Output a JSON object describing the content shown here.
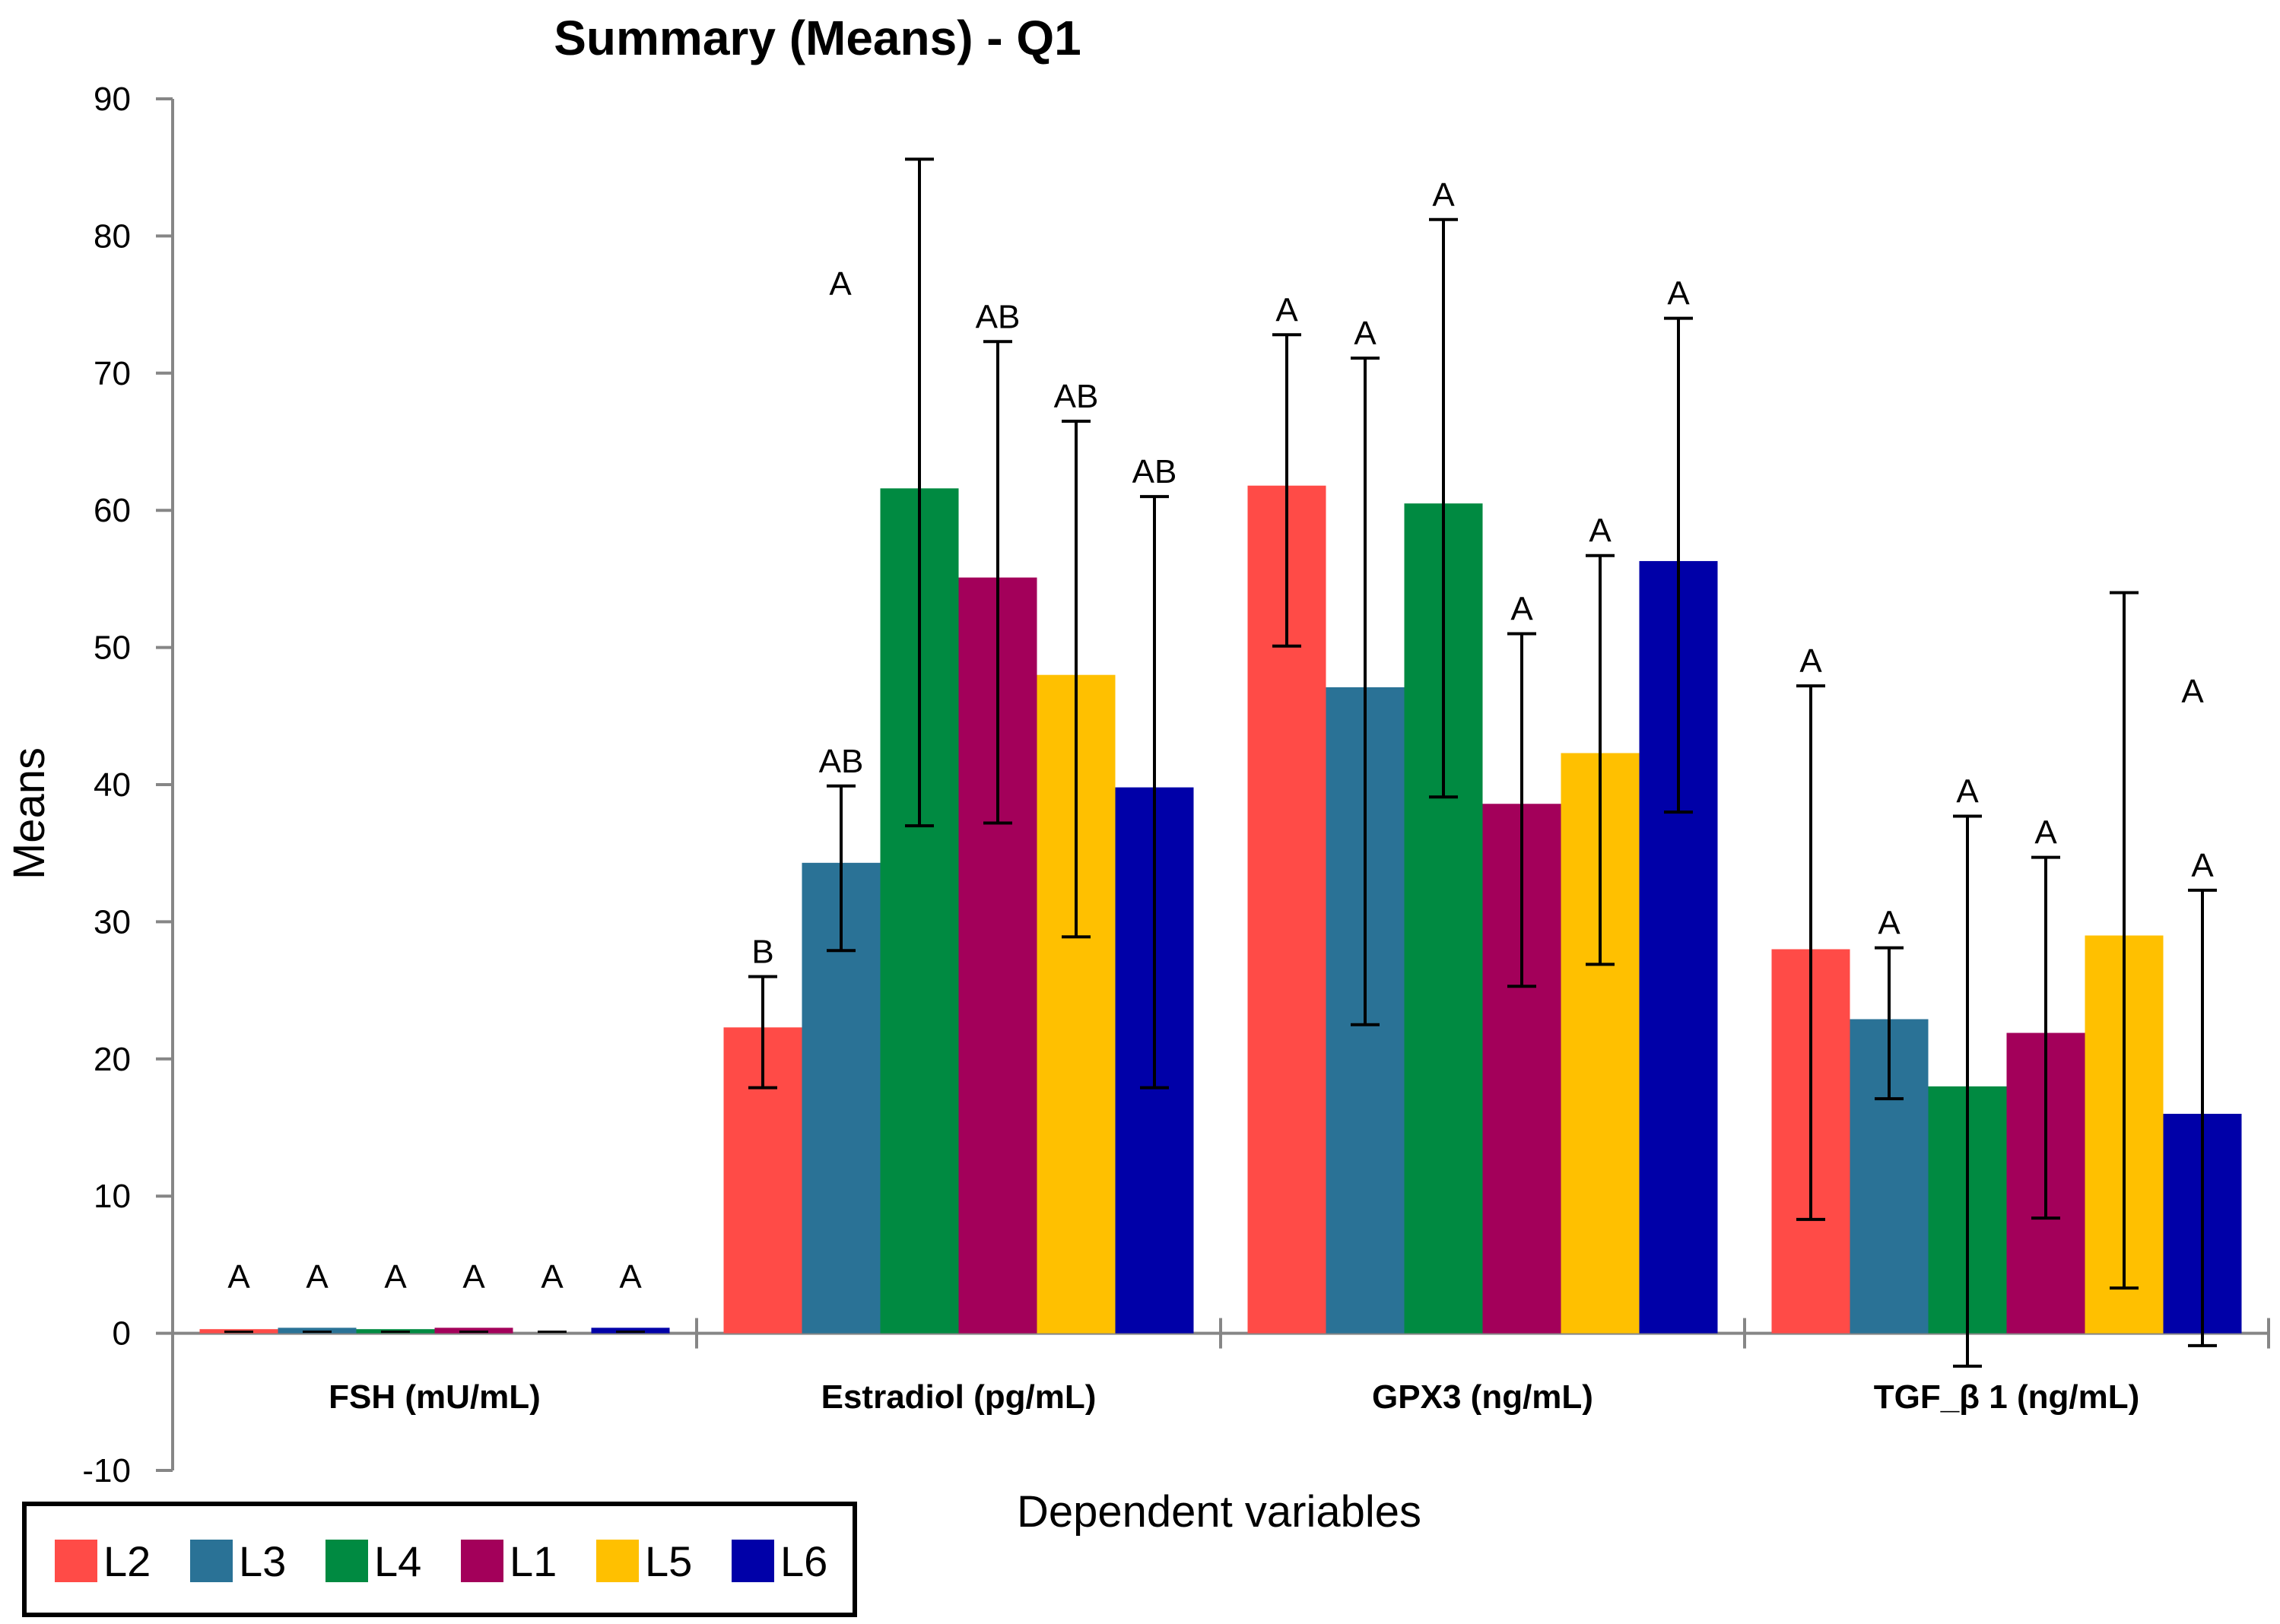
{
  "chart_data": {
    "type": "bar",
    "title": "Summary (Means) - Q1",
    "xlabel": "Dependent variables",
    "ylabel": "Means",
    "ylim": [
      -10,
      90
    ],
    "yticks": [
      -10,
      0,
      10,
      20,
      30,
      40,
      50,
      60,
      70,
      80,
      90
    ],
    "grid": false,
    "legend_position": "bottom-left",
    "categories": [
      "FSH (mU/mL)",
      "Estradiol (pg/mL)",
      "GPX3 (ng/mL)",
      "TGF_β 1 (ng/mL)"
    ],
    "series": [
      {
        "name": "L2",
        "color": "#FF4B47",
        "values": [
          0.3,
          22.3,
          61.8,
          28.0
        ],
        "err_low": [
          0.1,
          17.9,
          50.1,
          8.3
        ],
        "err_high": [
          0.5,
          26.0,
          72.8,
          47.2
        ],
        "letters": [
          "A",
          "B",
          "A",
          "A"
        ]
      },
      {
        "name": "L3",
        "color": "#2A7296",
        "values": [
          0.4,
          34.3,
          47.1,
          22.9
        ],
        "err_low": [
          0.2,
          27.9,
          22.5,
          17.1
        ],
        "err_high": [
          0.6,
          39.9,
          71.1,
          28.1
        ],
        "letters": [
          "A",
          "AB",
          "A",
          "A"
        ]
      },
      {
        "name": "L4",
        "color": "#008A41",
        "values": [
          0.3,
          61.6,
          60.5,
          18.0
        ],
        "err_low": [
          0.1,
          37.0,
          39.1,
          -2.4
        ],
        "err_high": [
          0.5,
          85.6,
          81.2,
          37.7
        ],
        "letters": [
          "A",
          "A",
          "A",
          "A"
        ]
      },
      {
        "name": "L1",
        "color": "#A3005A",
        "values": [
          0.4,
          55.1,
          38.6,
          21.9
        ],
        "err_low": [
          0.2,
          37.2,
          25.3,
          8.4
        ],
        "err_high": [
          0.6,
          72.3,
          51.0,
          34.7
        ],
        "letters": [
          "A",
          "AB",
          "A",
          "A"
        ]
      },
      {
        "name": "L5",
        "color": "#FFC000",
        "values": [
          0.0,
          48.0,
          42.3,
          29.0
        ],
        "err_low": [
          0.0,
          28.9,
          26.9,
          3.3
        ],
        "err_high": [
          0.0,
          66.5,
          56.7,
          54.0
        ],
        "letters": [
          "A",
          "AB",
          "A",
          "A"
        ]
      },
      {
        "name": "L6",
        "color": "#0000A8",
        "values": [
          0.4,
          39.8,
          56.3,
          16.0
        ],
        "err_low": [
          0.2,
          17.9,
          38.0,
          -0.9
        ],
        "err_high": [
          0.6,
          61.0,
          74.0,
          32.3
        ],
        "letters": [
          "A",
          "AB",
          "A",
          "A"
        ]
      }
    ]
  }
}
